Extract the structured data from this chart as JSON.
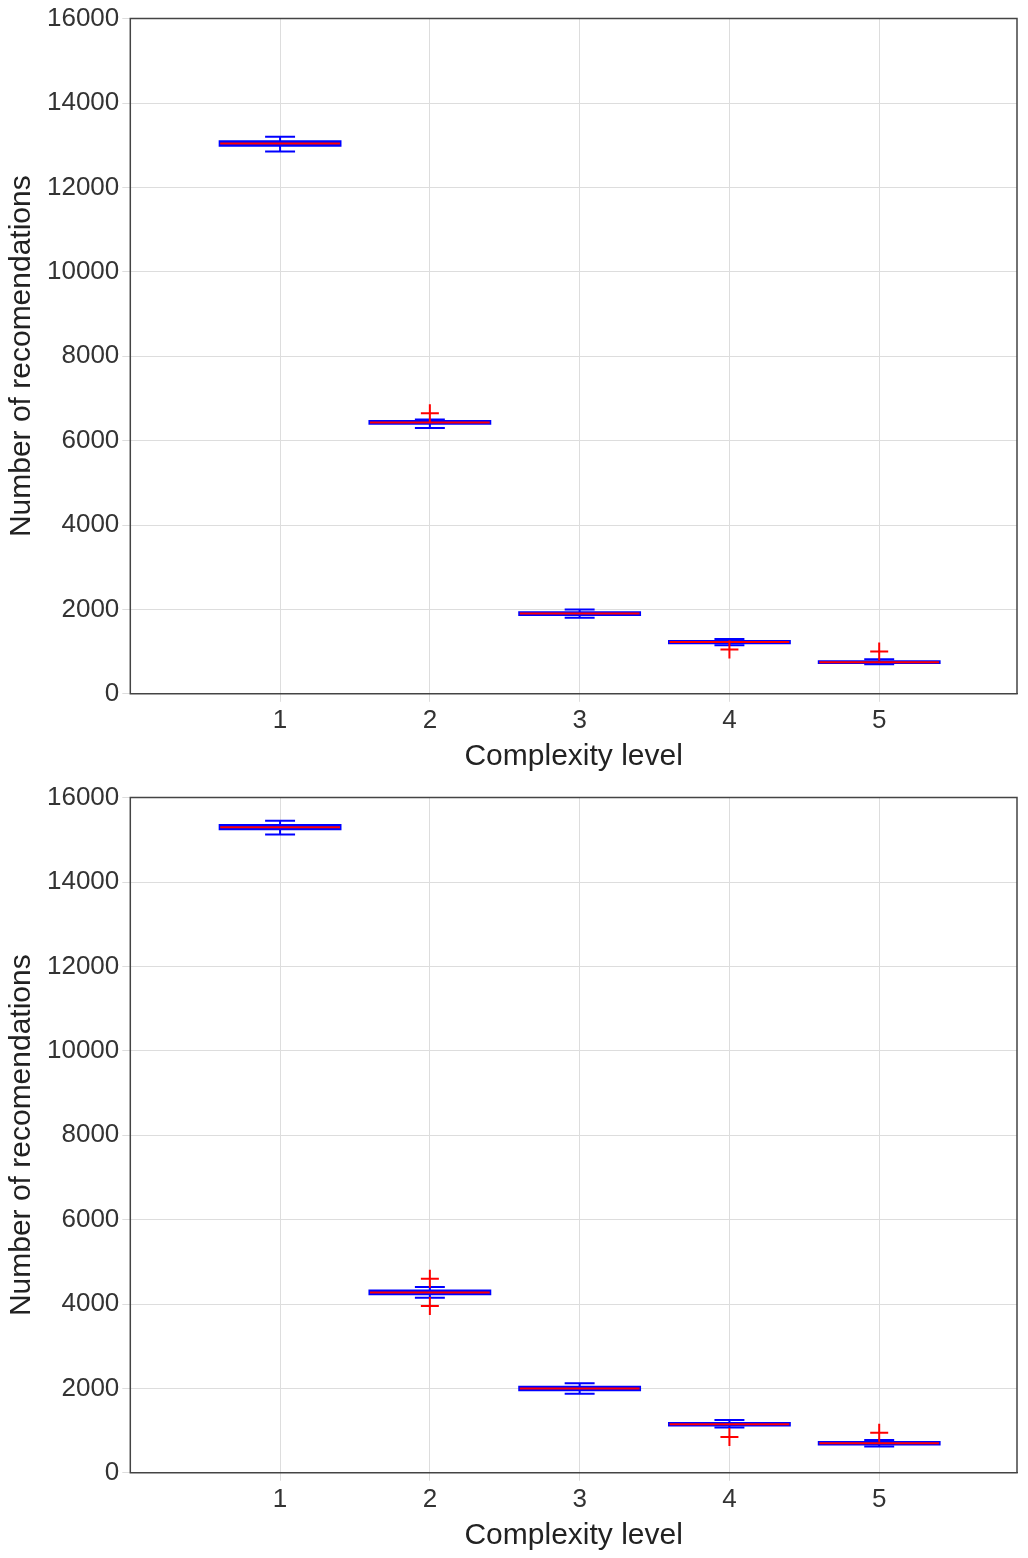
{
  "chart_data": [
    {
      "type": "box",
      "xlabel": "Complexity level",
      "ylabel": "Number of recomendations",
      "categories": [
        "1",
        "2",
        "3",
        "4",
        "5"
      ],
      "color": "#0000ff",
      "marker": "cross",
      "grid": true,
      "ylim": [
        0,
        16000
      ],
      "yticks": [
        0,
        2000,
        4000,
        6000,
        8000,
        10000,
        12000,
        14000,
        16000
      ],
      "boxes": [
        {
          "low": 12850,
          "q1": 13000,
          "median": 13040,
          "q3": 13080,
          "high": 13200
        },
        {
          "low": 6300,
          "q1": 6410,
          "median": 6430,
          "q3": 6450,
          "high": 6500,
          "outliers": [
            6650
          ]
        },
        {
          "low": 1800,
          "q1": 1880,
          "median": 1900,
          "q3": 1920,
          "high": 2000
        },
        {
          "low": 1150,
          "q1": 1210,
          "median": 1225,
          "q3": 1240,
          "high": 1300,
          "outliers": [
            1050
          ]
        },
        {
          "low": 700,
          "q1": 740,
          "median": 750,
          "q3": 760,
          "high": 820,
          "outliers": [
            1000
          ]
        }
      ]
    },
    {
      "type": "box",
      "xlabel": "Complexity level",
      "ylabel": "Number of recomendations",
      "categories": [
        "1",
        "2",
        "3",
        "4",
        "5"
      ],
      "color": "#0000ff",
      "marker": "cross",
      "grid": true,
      "ylim": [
        0,
        16000
      ],
      "yticks": [
        0,
        2000,
        4000,
        6000,
        8000,
        10000,
        12000,
        14000,
        16000
      ],
      "boxes": [
        {
          "low": 15125,
          "q1": 15260,
          "median": 15300,
          "q3": 15340,
          "high": 15450
        },
        {
          "low": 4150,
          "q1": 4240,
          "median": 4275,
          "q3": 4310,
          "high": 4400,
          "outliers": [
            4600,
            3950
          ]
        },
        {
          "low": 1875,
          "q1": 1970,
          "median": 2000,
          "q3": 2030,
          "high": 2125
        },
        {
          "low": 1075,
          "q1": 1130,
          "median": 1150,
          "q3": 1170,
          "high": 1250,
          "outliers": [
            850
          ]
        },
        {
          "low": 625,
          "q1": 680,
          "median": 700,
          "q3": 720,
          "high": 775,
          "outliers": [
            950
          ]
        }
      ]
    }
  ]
}
